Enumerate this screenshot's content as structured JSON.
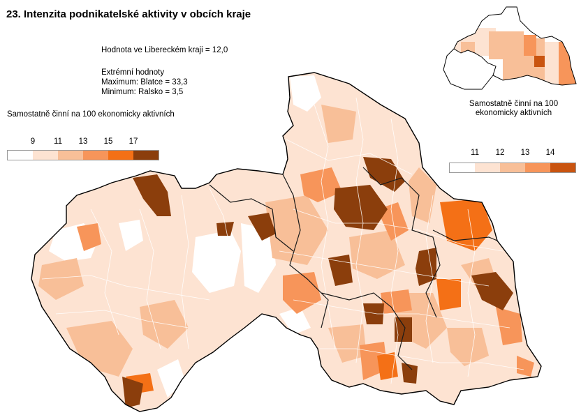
{
  "title": "23. Intenzita podnikatelské aktivity v obcích kraje",
  "region_value": "Hodnota ve Libereckém  kraji = 12,0",
  "extremes": {
    "heading": "Extrémní hodnoty",
    "maximum": "Maximum: Blatce = 33,3",
    "minimum": "Minimum: Ralsko = 3,5"
  },
  "main_legend": {
    "title": "Samostatně činní na 100 ekonomicky aktivních",
    "ticks": [
      "9",
      "11",
      "13",
      "15",
      "17"
    ],
    "colors": [
      "#ffffff",
      "#fde3d2",
      "#f8bf98",
      "#f7955a",
      "#f47016",
      "#8b3e0c"
    ]
  },
  "inset": {
    "caption_line1": "Samostatně činní na 100",
    "caption_line2": "ekonomicky aktivních",
    "legend": {
      "ticks": [
        "11",
        "12",
        "13",
        "14"
      ],
      "colors": [
        "#ffffff",
        "#fde3d2",
        "#f8bf98",
        "#f7955a",
        "#c95410"
      ]
    }
  }
}
